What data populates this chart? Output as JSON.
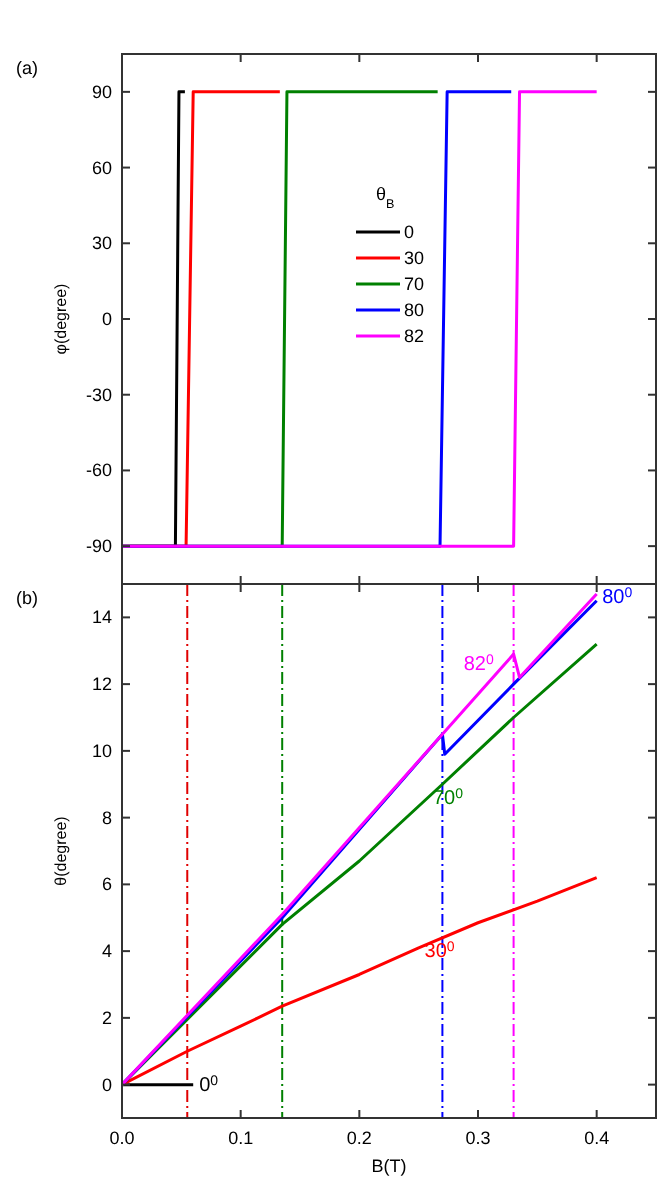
{
  "chart_data": [
    {
      "type": "line",
      "ylabel": "φ(degree)",
      "xlim": [
        0,
        0.45
      ],
      "xticks": [
        0,
        0.1,
        0.2,
        0.3,
        0.4
      ],
      "ylim": [
        -105,
        105
      ],
      "yticks": [
        -90,
        -60,
        -30,
        0,
        30,
        60,
        90
      ],
      "tick_labels": "y",
      "legend": "right",
      "legend_title": "θ$_{B}$",
      "grid": false,
      "annotations": [
        "(a)"
      ],
      "series": [
        {
          "name": "0",
          "color": "#000000",
          "x": [
            0,
            0.045,
            0.048,
            0.053
          ],
          "values": [
            -90,
            -90,
            90,
            90
          ]
        },
        {
          "name": "30",
          "color": "#ff0000",
          "x": [
            0,
            0.054,
            0.06,
            0.133
          ],
          "values": [
            -90,
            -90,
            90,
            90
          ]
        },
        {
          "name": "70",
          "color": "#008000",
          "x": [
            0,
            0.135,
            0.139,
            0.266
          ],
          "values": [
            -90,
            -90,
            90,
            90
          ]
        },
        {
          "name": "80",
          "color": "#0000ff",
          "x": [
            0,
            0.268,
            0.274,
            0.328
          ],
          "values": [
            -90,
            -90,
            90,
            90
          ]
        },
        {
          "name": "82",
          "color": "#ff00ff",
          "x": [
            0,
            0.33,
            0.335,
            0.4
          ],
          "values": [
            -90,
            -90,
            90,
            90
          ]
        }
      ]
    },
    {
      "type": "line",
      "xlabel": "B(T)",
      "ylabel": "θ(degree)",
      "xlim": [
        0,
        0.45
      ],
      "xticks": [
        {
          "value": 0,
          "label": "0.0"
        },
        0.1,
        0.2,
        0.3,
        0.4
      ],
      "ylim": [
        -1,
        15
      ],
      "yticks": [
        0,
        2,
        4,
        6,
        8,
        10,
        12,
        14
      ],
      "grid": false,
      "annotations": [
        "(b)"
      ],
      "ref_lines": [
        {
          "axis": "x",
          "value": 0.055,
          "color": "#e00000",
          "line_style": "dashed"
        },
        {
          "axis": "x",
          "value": 0.135,
          "color": "#008000",
          "line_style": "dashed"
        },
        {
          "axis": "x",
          "value": 0.27,
          "color": "#0000ff",
          "line_style": "dashed"
        },
        {
          "axis": "x",
          "value": 0.33,
          "color": "#ff00ff",
          "line_style": "dashed"
        }
      ],
      "series": [
        {
          "name": "0$^{0}$",
          "color": "#000000",
          "x": [
            0,
            0.06
          ],
          "values": [
            0,
            0
          ]
        },
        {
          "name": "30$^{0}$",
          "color": "#ff0000",
          "x": [
            0,
            0.055,
            0.1,
            0.135,
            0.2,
            0.25,
            0.3,
            0.35,
            0.4
          ],
          "values": [
            0,
            1.0,
            1.75,
            2.35,
            3.3,
            4.1,
            4.85,
            5.5,
            6.2
          ]
        },
        {
          "name": "70$^{0}$",
          "color": "#008000",
          "x": [
            0,
            0.135,
            0.2,
            0.27,
            0.33,
            0.4
          ],
          "values": [
            0,
            4.8,
            6.7,
            9.0,
            11.0,
            13.2
          ]
        },
        {
          "name": "80$^{0}$",
          "color": "#0000ff",
          "x": [
            0,
            0.135,
            0.27,
            0.272,
            0.33,
            0.4
          ],
          "values": [
            0,
            5.0,
            10.5,
            9.9,
            12.0,
            14.5
          ]
        },
        {
          "name": "82$^{0}$",
          "color": "#ff00ff",
          "x": [
            0,
            0.135,
            0.27,
            0.33,
            0.335,
            0.4
          ],
          "values": [
            0,
            5.1,
            10.5,
            12.9,
            12.2,
            14.7
          ]
        }
      ]
    }
  ]
}
